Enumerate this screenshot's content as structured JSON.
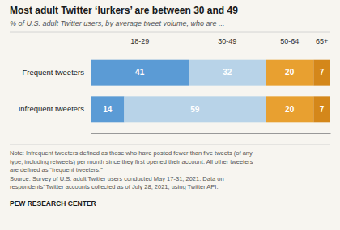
{
  "chart_data": {
    "type": "bar",
    "orientation": "horizontal",
    "stacked": true,
    "data_labels": true,
    "tick_labels": "y",
    "title": "Most adult Twitter ‘lurkers’ are between 30 and 49",
    "subtitle": "% of U.S. adult Twitter users, by average tweet volume, who are ...",
    "categories": [
      "Frequent tweeters",
      "Infrequent tweeters"
    ],
    "series": [
      {
        "name": "18-29",
        "color": "#5b9bd5",
        "values": [
          41,
          14
        ]
      },
      {
        "name": "30-49",
        "color": "#b8d3e8",
        "values": [
          32,
          59
        ]
      },
      {
        "name": "50-64",
        "color": "#e8a030",
        "values": [
          20,
          20
        ]
      },
      {
        "name": "65+",
        "color": "#d4871a",
        "values": [
          7,
          7
        ]
      }
    ],
    "xlim": [
      0,
      100
    ],
    "note": [
      "Note: Infrequent tweeters defined as those who have posted fewer than five tweets (of any",
      "type, including retweets) per month since they first opened their account. All other tweeters",
      "are defined as “frequent tweeters.”",
      "Source: Survey of U.S. adult Twitter users conducted May 17-31, 2021. Data on",
      "respondents’ Twitter accounts collected as of July 28, 2021, using Twitter API."
    ],
    "source": "PEW RESEARCH CENTER"
  }
}
